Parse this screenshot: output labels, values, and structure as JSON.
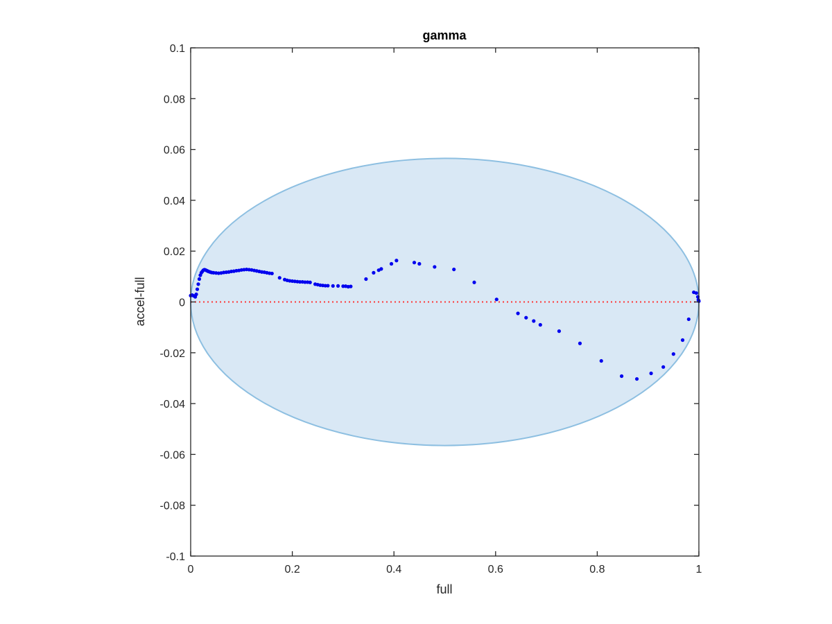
{
  "chart_data": {
    "type": "scatter",
    "title": "gamma",
    "xlabel": "full",
    "ylabel": "accel-full",
    "xlim": [
      0,
      1
    ],
    "ylim": [
      -0.1,
      0.1
    ],
    "x_ticks": [
      0,
      0.2,
      0.4,
      0.6,
      0.8,
      1
    ],
    "y_ticks": [
      -0.1,
      -0.08,
      -0.06,
      -0.04,
      -0.02,
      0,
      0.02,
      0.04,
      0.06,
      0.08,
      0.1
    ],
    "x_tick_labels": [
      "0",
      "0.2",
      "0.4",
      "0.6",
      "0.8",
      "1"
    ],
    "y_tick_labels": [
      "-0.1",
      "-0.08",
      "-0.06",
      "-0.04",
      "-0.02",
      "0",
      "0.02",
      "0.04",
      "0.06",
      "0.08",
      "0.1"
    ],
    "grid": false,
    "ellipse": {
      "center": [
        0.5,
        0.0
      ],
      "semi_axis_x": 0.5,
      "semi_axis_y": 0.0565,
      "fill_color": "#d9e8f5",
      "edge_color": "#8dbfe1"
    },
    "reference_line": {
      "y": 0,
      "color": "#ff3333",
      "style": "dotted"
    },
    "series": [
      {
        "color": "#0000ee",
        "x": [
          0.0,
          0.003,
          0.006,
          0.009,
          0.011,
          0.013,
          0.015,
          0.017,
          0.019,
          0.021,
          0.023,
          0.025,
          0.027,
          0.029,
          0.031,
          0.033,
          0.035,
          0.038,
          0.041,
          0.045,
          0.05,
          0.055,
          0.06,
          0.065,
          0.07,
          0.075,
          0.08,
          0.085,
          0.09,
          0.095,
          0.1,
          0.105,
          0.11,
          0.115,
          0.12,
          0.125,
          0.13,
          0.135,
          0.14,
          0.145,
          0.15,
          0.155,
          0.16,
          0.175,
          0.185,
          0.19,
          0.195,
          0.2,
          0.205,
          0.21,
          0.215,
          0.22,
          0.225,
          0.23,
          0.235,
          0.245,
          0.25,
          0.255,
          0.26,
          0.265,
          0.27,
          0.28,
          0.29,
          0.3,
          0.305,
          0.31,
          0.315,
          0.345,
          0.36,
          0.37,
          0.375,
          0.395,
          0.405,
          0.44,
          0.45,
          0.48,
          0.518,
          0.558,
          0.602,
          0.644,
          0.66,
          0.675,
          0.688,
          0.725,
          0.766,
          0.808,
          0.848,
          0.878,
          0.906,
          0.93,
          0.95,
          0.968,
          0.98,
          0.99,
          0.995,
          0.998,
          0.999,
          1.0
        ],
        "y": [
          0.0025,
          0.0027,
          0.0024,
          0.002,
          0.003,
          0.005,
          0.007,
          0.009,
          0.0105,
          0.0115,
          0.012,
          0.0125,
          0.0127,
          0.0126,
          0.0124,
          0.0122,
          0.012,
          0.0118,
          0.0116,
          0.0115,
          0.0114,
          0.0113,
          0.0114,
          0.0116,
          0.0117,
          0.0118,
          0.012,
          0.0121,
          0.0123,
          0.0124,
          0.0126,
          0.0127,
          0.0128,
          0.0127,
          0.0126,
          0.0124,
          0.0122,
          0.012,
          0.0118,
          0.0117,
          0.0115,
          0.0113,
          0.0112,
          0.0095,
          0.0088,
          0.0085,
          0.0083,
          0.0082,
          0.0081,
          0.008,
          0.0079,
          0.0079,
          0.0078,
          0.0078,
          0.0077,
          0.007,
          0.0068,
          0.0066,
          0.0065,
          0.0064,
          0.0064,
          0.0063,
          0.0063,
          0.0062,
          0.0062,
          0.006,
          0.0061,
          0.009,
          0.0115,
          0.0125,
          0.013,
          0.015,
          0.0163,
          0.0155,
          0.015,
          0.0138,
          0.0128,
          0.0077,
          0.001,
          -0.0045,
          -0.0062,
          -0.0075,
          -0.009,
          -0.0115,
          -0.0163,
          -0.0232,
          -0.0292,
          -0.0303,
          -0.0281,
          -0.0256,
          -0.0205,
          -0.015,
          -0.0068,
          0.0038,
          0.0035,
          0.002,
          0.0008,
          0.0003
        ]
      }
    ]
  }
}
